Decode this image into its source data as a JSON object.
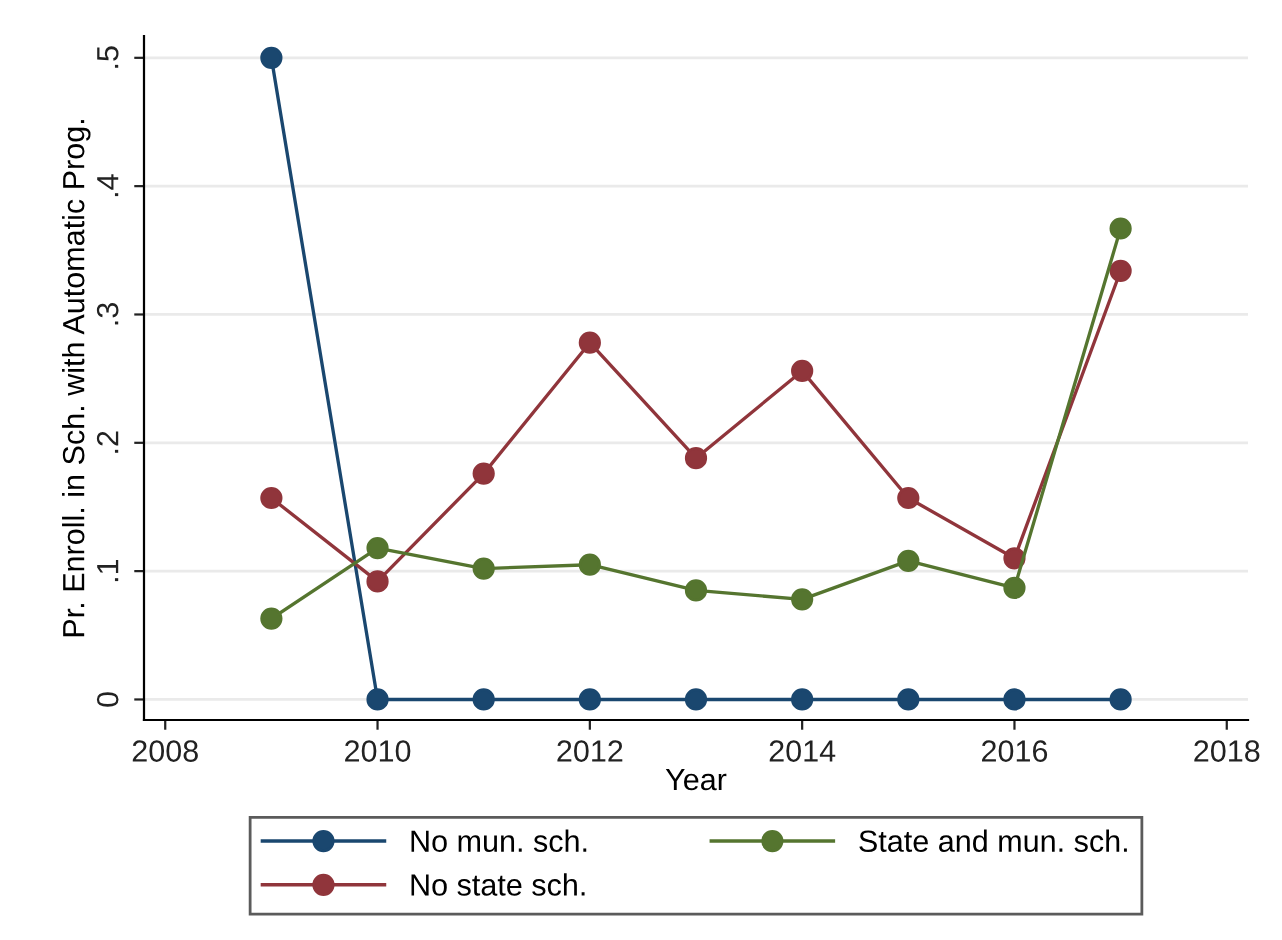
{
  "chart_data": {
    "type": "line",
    "xlabel": "Year",
    "ylabel": "Pr. Enroll. in Sch. with Automatic Prog.",
    "x": [
      2009,
      2010,
      2011,
      2012,
      2013,
      2014,
      2015,
      2016,
      2017
    ],
    "series": [
      {
        "name": "No mun. sch.",
        "color": "#1a476f",
        "values": [
          0.5,
          0,
          0,
          0,
          0,
          0,
          0,
          0,
          0
        ]
      },
      {
        "name": "No state sch.",
        "color": "#90353b",
        "values": [
          0.157,
          0.092,
          0.176,
          0.278,
          0.188,
          0.256,
          0.157,
          0.11,
          0.334
        ]
      },
      {
        "name": "State and mun. sch.",
        "color": "#55752f",
        "values": [
          0.063,
          0.118,
          0.102,
          0.105,
          0.085,
          0.078,
          0.108,
          0.087,
          0.367
        ]
      }
    ],
    "xlim": [
      2007.8,
      2018.2
    ],
    "ylim": [
      -0.016,
      0.517
    ],
    "xticks": [
      2008,
      2010,
      2012,
      2014,
      2016,
      2018
    ],
    "yticks": [
      {
        "value": 0,
        "label": "0"
      },
      {
        "value": 0.1,
        "label": ".1"
      },
      {
        "value": 0.2,
        "label": ".2"
      },
      {
        "value": 0.3,
        "label": ".3"
      },
      {
        "value": 0.4,
        "label": ".4"
      },
      {
        "value": 0.5,
        "label": ".5"
      }
    ],
    "grid": "y",
    "legend": "bottom",
    "marker": "circle",
    "line_style": "solid"
  }
}
